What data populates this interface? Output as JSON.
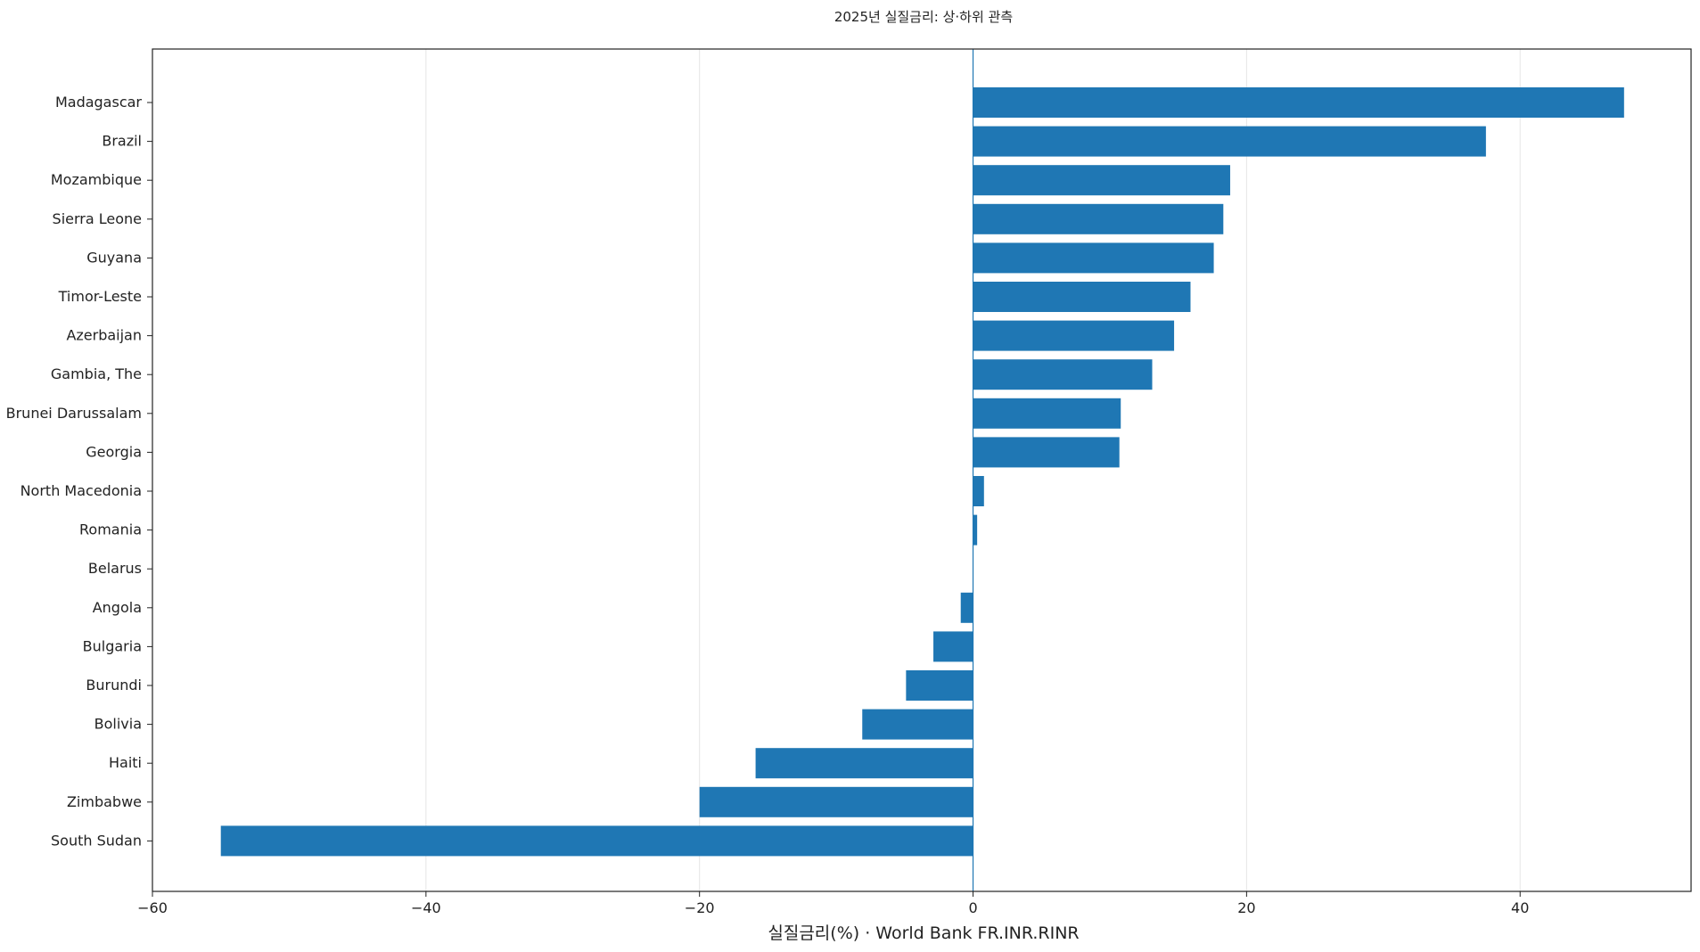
{
  "chart_data": {
    "type": "bar",
    "orientation": "horizontal",
    "title": "2025년 실질금리: 상·하위 관측",
    "xlabel": "실질금리(%) · World Bank FR.INR.RINR",
    "ylabel": "",
    "xlim": [
      -60,
      52.5
    ],
    "xticks": [
      -60,
      -40,
      -20,
      0,
      20,
      40
    ],
    "xtick_labels": [
      "−60",
      "−40",
      "−20",
      "0",
      "20",
      "40"
    ],
    "grid": "vertical",
    "zero_line": true,
    "colors": {
      "bar": "#1f77b4",
      "zero_line": "#1f77b4",
      "grid": "#e6e6e6",
      "frame": "#222222"
    },
    "categories": [
      "Madagascar",
      "Brazil",
      "Mozambique",
      "Sierra Leone",
      "Guyana",
      "Timor-Leste",
      "Azerbaijan",
      "Gambia, The",
      "Brunei Darussalam",
      "Georgia",
      "North Macedonia",
      "Romania",
      "Belarus",
      "Angola",
      "Bulgaria",
      "Burundi",
      "Bolivia",
      "Haiti",
      "Zimbabwe",
      "South Sudan"
    ],
    "values": [
      47.6,
      37.5,
      18.8,
      18.3,
      17.6,
      15.9,
      14.7,
      13.1,
      10.8,
      10.7,
      0.8,
      0.3,
      0.0,
      -0.9,
      -2.9,
      -4.9,
      -8.1,
      -15.9,
      -20.0,
      -55.0
    ]
  }
}
